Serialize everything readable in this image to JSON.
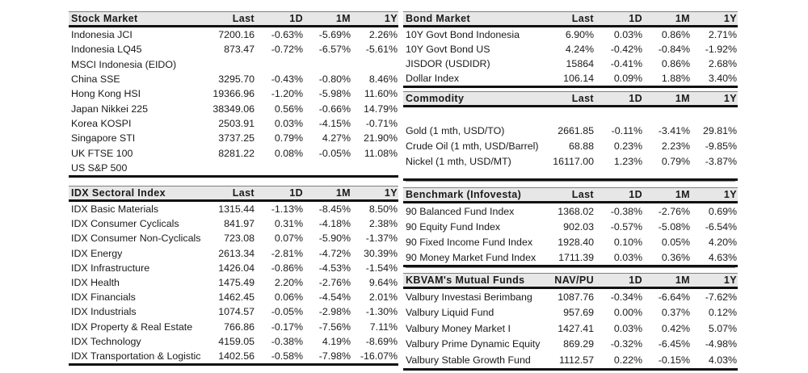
{
  "page": {
    "background": "#ffffff",
    "header_bg": "#e7e7e7",
    "rule_color": "#111111",
    "thin_rule_color": "#7f7f7f"
  },
  "tables": [
    {
      "id": "stock-market",
      "title": "Stock Market",
      "headers": [
        "Last",
        "1D",
        "1M",
        "1Y"
      ],
      "rows": [
        [
          "Indonesia JCI",
          "7200.16",
          "-0.63%",
          "-5.69%",
          "2.26%"
        ],
        [
          "Indonesia LQ45",
          "873.47",
          "-0.72%",
          "-6.57%",
          "-5.61%"
        ],
        [
          "MSCI Indonesia (EIDO)",
          "",
          "",
          "",
          ""
        ],
        [
          "China SSE",
          "3295.70",
          "-0.43%",
          "-0.80%",
          "8.46%"
        ],
        [
          "Hong Kong HSI",
          "19366.96",
          "-1.20%",
          "-5.98%",
          "11.60%"
        ],
        [
          "Japan Nikkei 225",
          "38349.06",
          "0.56%",
          "-0.66%",
          "14.79%"
        ],
        [
          "Korea KOSPI",
          "2503.91",
          "0.03%",
          "-4.15%",
          "-0.71%"
        ],
        [
          "Singapore STI",
          "3737.25",
          "0.79%",
          "4.27%",
          "21.90%"
        ],
        [
          "UK FTSE 100",
          "8281.22",
          "0.08%",
          "-0.05%",
          "11.08%"
        ],
        [
          "US S&P 500",
          "",
          "",
          "",
          ""
        ]
      ]
    },
    {
      "id": "idx-sectoral-index",
      "title": "IDX Sectoral Index",
      "headers": [
        "Last",
        "1D",
        "1M",
        "1Y"
      ],
      "rows": [
        [
          "IDX Basic Materials",
          "1315.44",
          "-1.13%",
          "-8.45%",
          "8.50%"
        ],
        [
          "IDX Consumer Cyclicals",
          "841.97",
          "0.31%",
          "-4.18%",
          "2.38%"
        ],
        [
          "IDX Consumer Non-Cyclicals",
          "723.08",
          "0.07%",
          "-5.90%",
          "-1.37%"
        ],
        [
          "IDX Energy",
          "2613.34",
          "-2.81%",
          "-4.72%",
          "30.39%"
        ],
        [
          "IDX Infrastructure",
          "1426.04",
          "-0.86%",
          "-4.53%",
          "-1.54%"
        ],
        [
          "IDX Health",
          "1475.49",
          "2.20%",
          "-2.76%",
          "9.64%"
        ],
        [
          "IDX Financials",
          "1462.45",
          "0.06%",
          "-4.54%",
          "2.01%"
        ],
        [
          "IDX Industrials",
          "1074.57",
          "-0.05%",
          "-2.98%",
          "-1.30%"
        ],
        [
          "IDX Property & Real Estate",
          "766.86",
          "-0.17%",
          "-7.56%",
          "7.11%"
        ],
        [
          "IDX Technology",
          "4159.05",
          "-0.38%",
          "4.19%",
          "-8.69%"
        ],
        [
          "IDX Transportation & Logistic",
          "1402.56",
          "-0.58%",
          "-7.98%",
          "-16.07%"
        ]
      ]
    },
    {
      "id": "bond-market",
      "title": "Bond Market",
      "headers": [
        "Last",
        "1D",
        "1M",
        "1Y"
      ],
      "rows": [
        [
          "10Y Govt Bond Indonesia",
          "6.90%",
          "0.03%",
          "0.86%",
          "2.71%"
        ],
        [
          "10Y Govt Bond US",
          "4.24%",
          "-0.42%",
          "-0.84%",
          "-1.92%"
        ],
        [
          "JISDOR (USDIDR)",
          "15864",
          "-0.41%",
          "0.86%",
          "2.68%"
        ],
        [
          "Dollar Index",
          "106.14",
          "0.09%",
          "1.88%",
          "3.40%"
        ]
      ]
    },
    {
      "id": "commodity",
      "title": "Commodity",
      "headers": [
        "Last",
        "1D",
        "1M",
        "1Y"
      ],
      "rows": [
        [
          "",
          "",
          "",
          "",
          ""
        ],
        [
          "Gold (1 mth, USD/TO)",
          "2661.85",
          "-0.11%",
          "-3.41%",
          "29.81%"
        ],
        [
          "Crude Oil (1 mth, USD/Barrel)",
          "68.88",
          "0.23%",
          "2.23%",
          "-9.85%"
        ],
        [
          "Nickel (1 mth, USD/MT)",
          "16117.00",
          "1.23%",
          "0.79%",
          "-3.87%"
        ]
      ]
    },
    {
      "id": "benchmark-infovesta",
      "title": "Benchmark (Infovesta)",
      "headers": [
        "Last",
        "1D",
        "1M",
        "1Y"
      ],
      "rows": [
        [
          "90 Balanced Fund Index",
          "1368.02",
          "-0.38%",
          "-2.76%",
          "0.69%"
        ],
        [
          "90 Equity Fund Index",
          "902.03",
          "-0.57%",
          "-5.08%",
          "-6.54%"
        ],
        [
          "90 Fixed Income Fund Index",
          "1928.40",
          "0.10%",
          "0.05%",
          "4.20%"
        ],
        [
          "90 Money Market Fund Index",
          "1711.39",
          "0.03%",
          "0.36%",
          "4.63%"
        ]
      ]
    },
    {
      "id": "kbvam-mutual-funds",
      "title": "KBVAM's Mutual Funds",
      "headers": [
        "NAV/PU",
        "1D",
        "1M",
        "1Y"
      ],
      "rows": [
        [
          "Valbury Investasi Berimbang",
          "1087.76",
          "-0.34%",
          "-6.64%",
          "-7.62%"
        ],
        [
          "Valbury Liquid Fund",
          "957.69",
          "0.00%",
          "0.37%",
          "0.12%"
        ],
        [
          "Valbury Money Market I",
          "1427.41",
          "0.03%",
          "0.42%",
          "5.07%"
        ],
        [
          "Valbury Prime Dynamic Equity",
          "869.29",
          "-0.32%",
          "-6.45%",
          "-4.98%"
        ],
        [
          "Valbury Stable Growth Fund",
          "1112.57",
          "0.22%",
          "-0.15%",
          "4.03%"
        ]
      ]
    }
  ]
}
